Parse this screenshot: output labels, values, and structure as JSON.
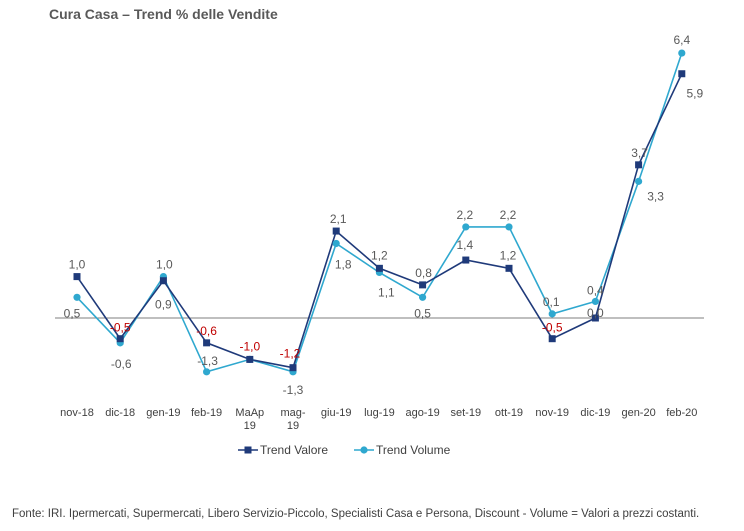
{
  "title": "Cura Casa – Trend % delle Vendite",
  "footer": "Fonte: IRI. Ipermercati, Supermercati, Libero Servizio-Piccolo,  Specialisti Casa e Persona, Discount -  Volume =  Valori a prezzi  costanti.",
  "colors": {
    "valore": "#1F3A7A",
    "volume": "#2FA8CF",
    "negative_label": "#C00000",
    "label": "#595959",
    "zero_line": "#7F7F7F"
  },
  "chart_data": {
    "type": "line",
    "title": "Cura Casa – Trend % delle Vendite",
    "categories": [
      "nov-18",
      "dic-18",
      "gen-19",
      "feb-19",
      "MaAp 19",
      "mag-19",
      "giu-19",
      "lug-19",
      "ago-19",
      "set-19",
      "ott-19",
      "nov-19",
      "dic-19",
      "gen-20",
      "feb-20"
    ],
    "category_lines": [
      [
        "nov-18"
      ],
      [
        "dic-18"
      ],
      [
        "gen-19"
      ],
      [
        "feb-19"
      ],
      [
        "MaAp",
        "19"
      ],
      [
        "mag-",
        "19"
      ],
      [
        "giu-19"
      ],
      [
        "lug-19"
      ],
      [
        "ago-19"
      ],
      [
        "set-19"
      ],
      [
        "ott-19"
      ],
      [
        "nov-19"
      ],
      [
        "dic-19"
      ],
      [
        "gen-20"
      ],
      [
        "feb-20"
      ]
    ],
    "series": [
      {
        "name": "Trend Valore",
        "values": [
          1.0,
          -0.5,
          0.9,
          -0.6,
          -1.0,
          -1.2,
          2.1,
          1.2,
          0.8,
          1.4,
          1.2,
          -0.5,
          0.0,
          3.7,
          5.9
        ],
        "labels": [
          "1,0",
          "-0,5",
          "0,9",
          "-0,6",
          "-1,0",
          "-1,2",
          "2,1",
          "1,2",
          "0,8",
          "1,4",
          "1,2",
          "-0,5",
          "0,0",
          "3,7",
          "5,9"
        ]
      },
      {
        "name": "Trend Volume",
        "values": [
          0.5,
          -0.6,
          1.0,
          -1.3,
          -1.0,
          -1.3,
          1.8,
          1.1,
          0.5,
          2.2,
          2.2,
          0.1,
          0.4,
          3.3,
          6.4
        ],
        "labels": [
          "0,5",
          "-0,6",
          "1,0",
          "-1,3",
          "",
          "-1,3",
          "1,8",
          "1,1",
          "0,5",
          "2,2",
          "2,2",
          "0,1",
          "0,4",
          "3,3",
          "6,4"
        ]
      }
    ],
    "legend": "bottom",
    "grid": false
  }
}
